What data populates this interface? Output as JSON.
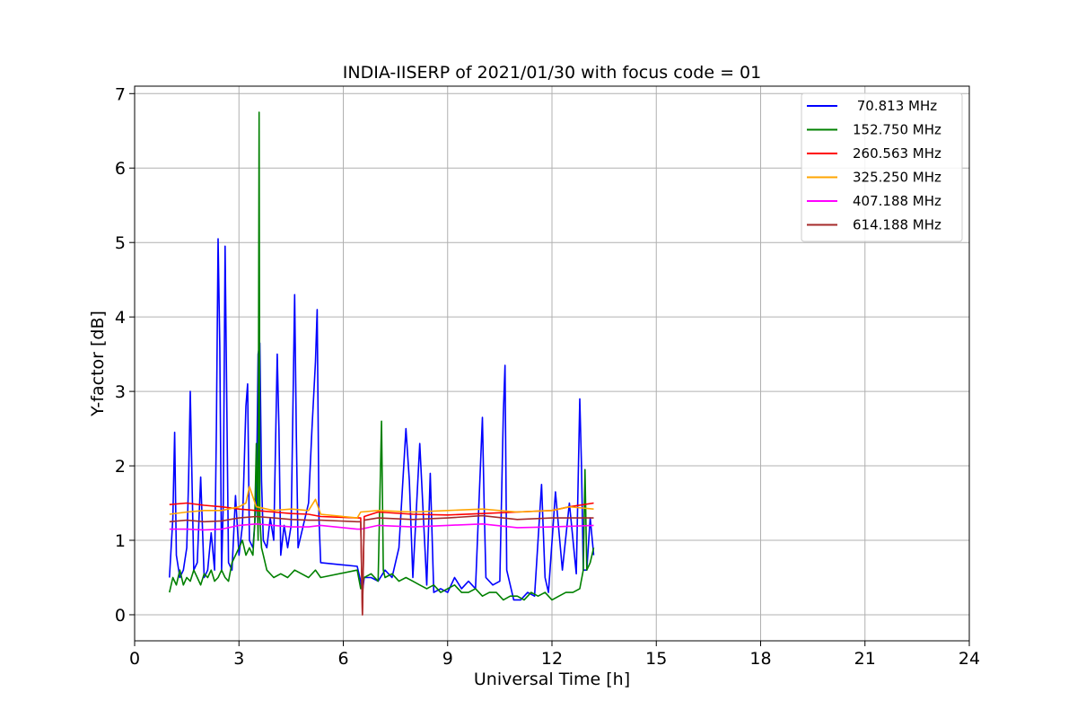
{
  "chart_data": {
    "type": "line",
    "title": "INDIA-IISERP of 2021/01/30 with focus code = 01",
    "xlabel": "Universal Time [h]",
    "ylabel": "Y-factor [dB]",
    "xlim": [
      0,
      24
    ],
    "ylim": [
      -0.35,
      7.1
    ],
    "xticks": [
      "0",
      "3",
      "6",
      "9",
      "12",
      "15",
      "18",
      "21",
      "24"
    ],
    "yticks": [
      "0",
      "1",
      "2",
      "3",
      "4",
      "5",
      "6",
      "7"
    ],
    "grid": true,
    "legend_position": "top-right",
    "series": [
      {
        "name": " 70.813 MHz",
        "color": "#0000ff",
        "x": [
          1.0,
          1.05,
          1.1,
          1.15,
          1.2,
          1.3,
          1.4,
          1.5,
          1.55,
          1.6,
          1.7,
          1.8,
          1.9,
          2.0,
          2.1,
          2.2,
          2.3,
          2.35,
          2.4,
          2.45,
          2.5,
          2.55,
          2.6,
          2.7,
          2.8,
          2.9,
          3.0,
          3.1,
          3.2,
          3.25,
          3.3,
          3.4,
          3.5,
          3.55,
          3.6,
          3.65,
          3.7,
          3.8,
          3.9,
          4.0,
          4.1,
          4.15,
          4.2,
          4.3,
          4.4,
          4.5,
          4.6,
          4.65,
          4.7,
          4.8,
          4.9,
          5.0,
          5.1,
          5.2,
          5.25,
          5.3,
          5.35,
          6.4,
          6.5,
          6.55,
          6.6,
          6.8,
          7.0,
          7.2,
          7.4,
          7.6,
          7.8,
          7.9,
          8.0,
          8.2,
          8.4,
          8.5,
          8.6,
          8.8,
          9.0,
          9.2,
          9.4,
          9.6,
          9.8,
          10.0,
          10.05,
          10.1,
          10.3,
          10.5,
          10.6,
          10.65,
          10.7,
          10.9,
          11.1,
          11.3,
          11.5,
          11.7,
          11.8,
          11.9,
          12.1,
          12.3,
          12.5,
          12.7,
          12.8,
          12.85,
          12.9,
          13.0,
          13.1,
          13.2
        ],
        "y": [
          0.5,
          0.9,
          1.3,
          2.45,
          0.8,
          0.5,
          0.6,
          0.9,
          1.8,
          3.0,
          0.6,
          0.7,
          1.85,
          0.5,
          0.6,
          1.1,
          0.6,
          2.5,
          5.05,
          3.6,
          0.6,
          1.5,
          4.95,
          0.7,
          0.6,
          1.6,
          0.8,
          1.2,
          2.8,
          3.1,
          1.0,
          0.9,
          1.5,
          3.5,
          3.65,
          1.8,
          1.0,
          0.9,
          1.3,
          1.0,
          3.5,
          2.5,
          0.8,
          1.2,
          0.9,
          1.2,
          4.3,
          2.4,
          0.9,
          1.1,
          1.3,
          1.5,
          2.5,
          3.4,
          4.1,
          1.3,
          0.7,
          0.65,
          0.45,
          0.3,
          0.5,
          0.5,
          0.45,
          0.6,
          0.5,
          0.9,
          2.5,
          1.8,
          0.5,
          2.3,
          0.4,
          1.9,
          0.3,
          0.35,
          0.3,
          0.5,
          0.35,
          0.45,
          0.35,
          2.65,
          1.5,
          0.5,
          0.4,
          0.45,
          2.7,
          3.35,
          0.6,
          0.2,
          0.2,
          0.3,
          0.25,
          1.75,
          0.5,
          0.3,
          1.65,
          0.6,
          1.5,
          0.55,
          2.9,
          2.0,
          0.6,
          0.6,
          1.3,
          0.8
        ]
      },
      {
        "name": "152.750 MHz",
        "color": "#008000",
        "x": [
          1.0,
          1.1,
          1.2,
          1.3,
          1.4,
          1.5,
          1.6,
          1.7,
          1.8,
          1.9,
          2.0,
          2.1,
          2.2,
          2.3,
          2.4,
          2.5,
          2.6,
          2.7,
          2.8,
          2.9,
          3.0,
          3.1,
          3.2,
          3.3,
          3.4,
          3.45,
          3.5,
          3.55,
          3.58,
          3.6,
          3.65,
          3.7,
          3.8,
          4.0,
          4.2,
          4.4,
          4.6,
          4.8,
          5.0,
          5.2,
          5.35,
          6.4,
          6.5,
          6.6,
          6.8,
          7.0,
          7.1,
          7.15,
          7.2,
          7.4,
          7.6,
          7.8,
          8.0,
          8.2,
          8.4,
          8.6,
          8.8,
          9.0,
          9.2,
          9.4,
          9.6,
          9.8,
          10.0,
          10.2,
          10.4,
          10.6,
          10.8,
          11.0,
          11.2,
          11.4,
          11.6,
          11.8,
          12.0,
          12.2,
          12.4,
          12.6,
          12.8,
          12.9,
          12.95,
          13.0,
          13.1,
          13.2
        ],
        "y": [
          0.3,
          0.5,
          0.4,
          0.6,
          0.4,
          0.5,
          0.45,
          0.6,
          0.5,
          0.4,
          0.55,
          0.5,
          0.6,
          0.45,
          0.5,
          0.6,
          0.5,
          0.45,
          0.7,
          0.8,
          0.9,
          1.0,
          0.8,
          0.9,
          0.8,
          1.2,
          2.3,
          1.0,
          6.75,
          1.3,
          0.9,
          0.8,
          0.6,
          0.5,
          0.55,
          0.5,
          0.6,
          0.55,
          0.5,
          0.6,
          0.5,
          0.6,
          0.35,
          0.5,
          0.55,
          0.45,
          2.6,
          0.6,
          0.5,
          0.55,
          0.45,
          0.5,
          0.45,
          0.4,
          0.35,
          0.4,
          0.3,
          0.35,
          0.4,
          0.3,
          0.3,
          0.35,
          0.25,
          0.3,
          0.3,
          0.2,
          0.25,
          0.25,
          0.2,
          0.3,
          0.25,
          0.3,
          0.2,
          0.25,
          0.3,
          0.3,
          0.35,
          0.6,
          1.95,
          0.6,
          0.7,
          0.9
        ]
      },
      {
        "name": "260.563 MHz",
        "color": "#ff0000",
        "x": [
          1.0,
          1.5,
          2.0,
          2.5,
          3.0,
          3.5,
          4.0,
          4.5,
          5.0,
          5.35,
          6.4,
          6.5,
          6.55,
          6.6,
          7.0,
          8.0,
          9.0,
          10.0,
          11.0,
          12.0,
          12.5,
          13.2
        ],
        "y": [
          1.48,
          1.5,
          1.47,
          1.45,
          1.42,
          1.4,
          1.38,
          1.36,
          1.35,
          1.32,
          1.3,
          1.3,
          0.0,
          1.32,
          1.38,
          1.35,
          1.34,
          1.36,
          1.38,
          1.4,
          1.45,
          1.5
        ]
      },
      {
        "name": "325.250 MHz",
        "color": "#ffa500",
        "x": [
          1.0,
          1.5,
          2.0,
          2.5,
          3.0,
          3.2,
          3.3,
          3.5,
          4.0,
          4.5,
          5.0,
          5.2,
          5.35,
          6.4,
          6.5,
          7.0,
          8.0,
          9.0,
          10.0,
          11.0,
          12.0,
          12.5,
          13.2
        ],
        "y": [
          1.35,
          1.38,
          1.4,
          1.4,
          1.45,
          1.5,
          1.72,
          1.45,
          1.4,
          1.42,
          1.4,
          1.55,
          1.35,
          1.3,
          1.38,
          1.4,
          1.38,
          1.4,
          1.42,
          1.38,
          1.4,
          1.45,
          1.42
        ]
      },
      {
        "name": "407.188 MHz",
        "color": "#ff00ff",
        "x": [
          1.0,
          1.5,
          2.0,
          2.5,
          3.0,
          3.5,
          4.0,
          4.5,
          5.0,
          5.35,
          6.4,
          6.5,
          7.0,
          8.0,
          9.0,
          10.0,
          11.0,
          12.0,
          13.2
        ],
        "y": [
          1.15,
          1.15,
          1.14,
          1.15,
          1.2,
          1.22,
          1.2,
          1.18,
          1.18,
          1.2,
          1.15,
          1.15,
          1.2,
          1.18,
          1.2,
          1.22,
          1.17,
          1.18,
          1.2
        ]
      },
      {
        "name": "614.188 MHz",
        "color": "#a52a2a",
        "x": [
          1.0,
          1.5,
          2.0,
          2.5,
          3.0,
          3.5,
          4.0,
          4.5,
          5.0,
          5.35,
          6.4,
          6.5,
          6.55,
          6.6,
          7.0,
          8.0,
          9.0,
          10.0,
          11.0,
          12.0,
          13.2
        ],
        "y": [
          1.25,
          1.27,
          1.25,
          1.26,
          1.3,
          1.32,
          1.3,
          1.28,
          1.27,
          1.27,
          1.25,
          1.25,
          0.0,
          1.27,
          1.3,
          1.28,
          1.3,
          1.33,
          1.28,
          1.3,
          1.3
        ]
      }
    ]
  }
}
